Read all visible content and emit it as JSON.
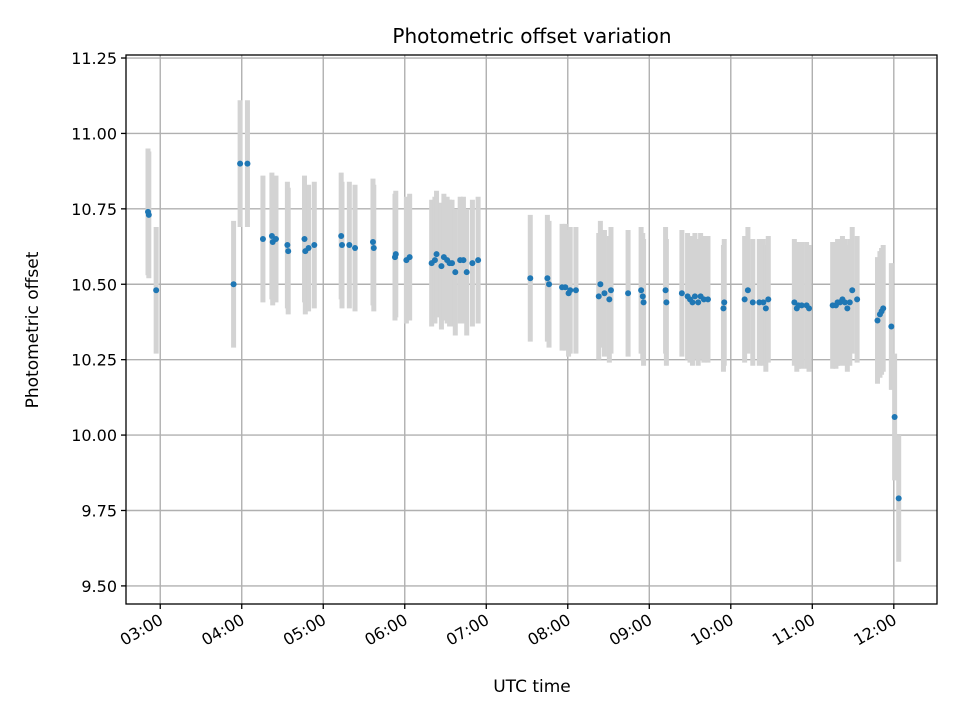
{
  "chart_data": {
    "type": "scatter",
    "title": "Photometric offset variation",
    "xlabel": "UTC time",
    "ylabel": "Photometric offset",
    "x_unit": "hours UTC",
    "xlim": [
      2.58,
      12.53
    ],
    "ylim": [
      9.44,
      11.26
    ],
    "x_ticks": [
      3,
      4,
      5,
      6,
      7,
      8,
      9,
      10,
      11,
      12
    ],
    "x_tick_labels": [
      "03:00",
      "04:00",
      "05:00",
      "06:00",
      "07:00",
      "08:00",
      "09:00",
      "10:00",
      "11:00",
      "12:00"
    ],
    "y_ticks": [
      9.5,
      9.75,
      10.0,
      10.25,
      10.5,
      10.75,
      11.0,
      11.25
    ],
    "y_tick_labels": [
      "9.50",
      "9.75",
      "10.00",
      "10.25",
      "10.50",
      "10.75",
      "11.00",
      "11.25"
    ],
    "grid": true,
    "colors": {
      "points": "#1f77b4",
      "error_bars": "#d3d3d3",
      "grid": "#b0b0b0"
    },
    "series": [
      {
        "error_band_halfwidth": 0.21,
        "points": [
          {
            "x": 2.85,
            "y": 10.74
          },
          {
            "x": 2.86,
            "y": 10.73
          },
          {
            "x": 2.95,
            "y": 10.48
          },
          {
            "x": 3.9,
            "y": 10.5
          },
          {
            "x": 3.98,
            "y": 10.9
          },
          {
            "x": 4.07,
            "y": 10.9
          },
          {
            "x": 4.26,
            "y": 10.65
          },
          {
            "x": 4.37,
            "y": 10.66
          },
          {
            "x": 4.38,
            "y": 10.64
          },
          {
            "x": 4.42,
            "y": 10.65
          },
          {
            "x": 4.56,
            "y": 10.63
          },
          {
            "x": 4.57,
            "y": 10.61
          },
          {
            "x": 4.77,
            "y": 10.65
          },
          {
            "x": 4.78,
            "y": 10.61
          },
          {
            "x": 4.82,
            "y": 10.62
          },
          {
            "x": 4.89,
            "y": 10.63
          },
          {
            "x": 5.22,
            "y": 10.66
          },
          {
            "x": 5.23,
            "y": 10.63
          },
          {
            "x": 5.32,
            "y": 10.63
          },
          {
            "x": 5.39,
            "y": 10.62
          },
          {
            "x": 5.61,
            "y": 10.64
          },
          {
            "x": 5.62,
            "y": 10.62
          },
          {
            "x": 5.88,
            "y": 10.59
          },
          {
            "x": 5.89,
            "y": 10.6
          },
          {
            "x": 6.02,
            "y": 10.58
          },
          {
            "x": 6.06,
            "y": 10.59
          },
          {
            "x": 6.33,
            "y": 10.57
          },
          {
            "x": 6.37,
            "y": 10.58
          },
          {
            "x": 6.39,
            "y": 10.6
          },
          {
            "x": 6.45,
            "y": 10.56
          },
          {
            "x": 6.48,
            "y": 10.59
          },
          {
            "x": 6.52,
            "y": 10.58
          },
          {
            "x": 6.55,
            "y": 10.57
          },
          {
            "x": 6.58,
            "y": 10.57
          },
          {
            "x": 6.62,
            "y": 10.54
          },
          {
            "x": 6.68,
            "y": 10.58
          },
          {
            "x": 6.72,
            "y": 10.58
          },
          {
            "x": 6.76,
            "y": 10.54
          },
          {
            "x": 6.83,
            "y": 10.57
          },
          {
            "x": 6.9,
            "y": 10.58
          },
          {
            "x": 7.54,
            "y": 10.52
          },
          {
            "x": 7.75,
            "y": 10.52
          },
          {
            "x": 7.77,
            "y": 10.5
          },
          {
            "x": 7.93,
            "y": 10.49
          },
          {
            "x": 7.97,
            "y": 10.49
          },
          {
            "x": 8.01,
            "y": 10.47
          },
          {
            "x": 8.03,
            "y": 10.48
          },
          {
            "x": 8.1,
            "y": 10.48
          },
          {
            "x": 8.38,
            "y": 10.46
          },
          {
            "x": 8.4,
            "y": 10.5
          },
          {
            "x": 8.45,
            "y": 10.47
          },
          {
            "x": 8.51,
            "y": 10.45
          },
          {
            "x": 8.53,
            "y": 10.48
          },
          {
            "x": 8.74,
            "y": 10.47
          },
          {
            "x": 8.9,
            "y": 10.48
          },
          {
            "x": 8.92,
            "y": 10.46
          },
          {
            "x": 8.93,
            "y": 10.44
          },
          {
            "x": 9.2,
            "y": 10.48
          },
          {
            "x": 9.21,
            "y": 10.44
          },
          {
            "x": 9.4,
            "y": 10.47
          },
          {
            "x": 9.47,
            "y": 10.46
          },
          {
            "x": 9.5,
            "y": 10.45
          },
          {
            "x": 9.53,
            "y": 10.44
          },
          {
            "x": 9.56,
            "y": 10.46
          },
          {
            "x": 9.6,
            "y": 10.44
          },
          {
            "x": 9.63,
            "y": 10.46
          },
          {
            "x": 9.67,
            "y": 10.45
          },
          {
            "x": 9.72,
            "y": 10.45
          },
          {
            "x": 9.91,
            "y": 10.42
          },
          {
            "x": 9.92,
            "y": 10.44
          },
          {
            "x": 10.17,
            "y": 10.45
          },
          {
            "x": 10.21,
            "y": 10.48
          },
          {
            "x": 10.27,
            "y": 10.44
          },
          {
            "x": 10.35,
            "y": 10.44
          },
          {
            "x": 10.4,
            "y": 10.44
          },
          {
            "x": 10.43,
            "y": 10.42
          },
          {
            "x": 10.46,
            "y": 10.45
          },
          {
            "x": 10.78,
            "y": 10.44
          },
          {
            "x": 10.81,
            "y": 10.42
          },
          {
            "x": 10.83,
            "y": 10.43
          },
          {
            "x": 10.87,
            "y": 10.43
          },
          {
            "x": 10.93,
            "y": 10.43
          },
          {
            "x": 10.96,
            "y": 10.42
          },
          {
            "x": 11.25,
            "y": 10.43
          },
          {
            "x": 11.29,
            "y": 10.43
          },
          {
            "x": 11.31,
            "y": 10.44
          },
          {
            "x": 11.34,
            "y": 10.44
          },
          {
            "x": 11.37,
            "y": 10.45
          },
          {
            "x": 11.4,
            "y": 10.44
          },
          {
            "x": 11.43,
            "y": 10.42
          },
          {
            "x": 11.46,
            "y": 10.44
          },
          {
            "x": 11.49,
            "y": 10.48
          },
          {
            "x": 11.55,
            "y": 10.45
          },
          {
            "x": 11.8,
            "y": 10.38
          },
          {
            "x": 11.83,
            "y": 10.4
          },
          {
            "x": 11.85,
            "y": 10.41
          },
          {
            "x": 11.87,
            "y": 10.42
          },
          {
            "x": 11.97,
            "y": 10.36
          },
          {
            "x": 12.01,
            "y": 10.06
          },
          {
            "x": 12.06,
            "y": 9.79
          }
        ]
      }
    ]
  }
}
